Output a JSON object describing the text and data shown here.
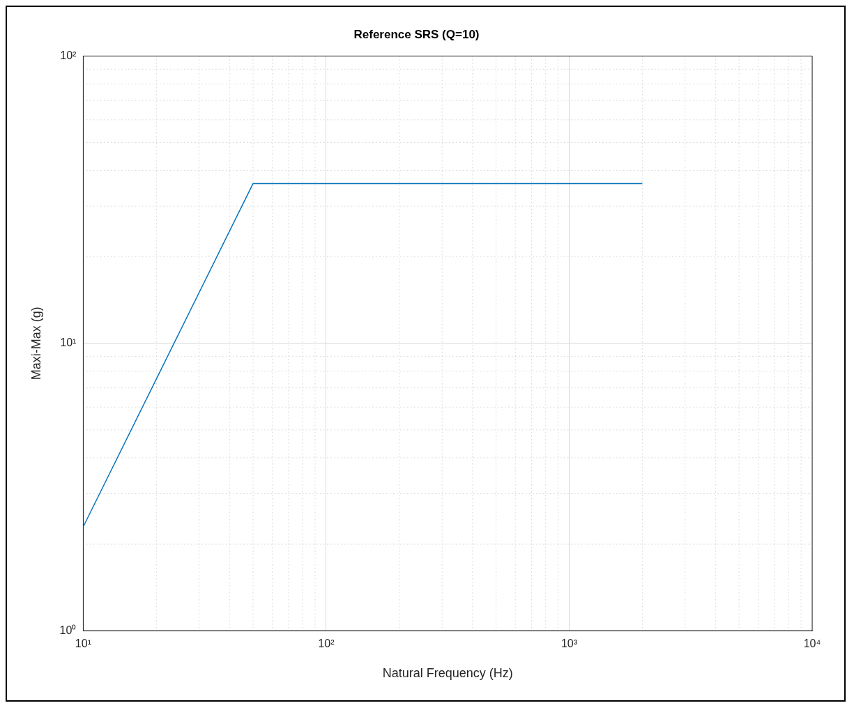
{
  "chart_data": {
    "type": "line",
    "title": "Reference SRS (Q=10)",
    "xlabel": "Natural Frequency (Hz)",
    "ylabel": "Maxi-Max (g)",
    "log": "xy",
    "grid": true,
    "legend": false,
    "marker": "none",
    "line_style": "solid",
    "xlim": [
      10,
      10000
    ],
    "xticks": [
      {
        "value": 10,
        "label": "10¹"
      },
      {
        "value": 100,
        "label": "10²"
      },
      {
        "value": 1000,
        "label": "10³"
      },
      {
        "value": 10000,
        "label": "10⁴"
      }
    ],
    "ylim": [
      1,
      100
    ],
    "yticks": [
      {
        "value": 1,
        "label": "10⁰"
      },
      {
        "value": 10,
        "label": "10¹"
      },
      {
        "value": 100,
        "label": "10²"
      }
    ],
    "series": [
      {
        "color": "#0072bd",
        "x": [
          10,
          50,
          2000
        ],
        "values": [
          2.3,
          36,
          36
        ]
      }
    ]
  }
}
